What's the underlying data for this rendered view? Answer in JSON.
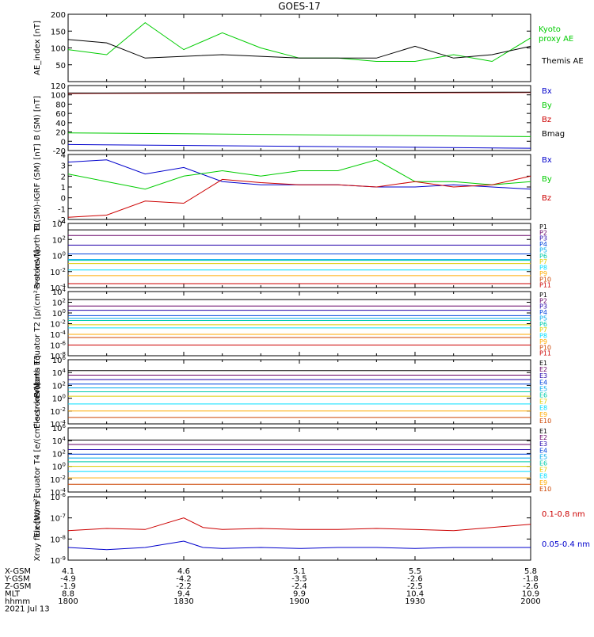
{
  "title": "GOES-17",
  "x_ticks": [
    "1800",
    "1830",
    "1900",
    "1930",
    "2000"
  ],
  "footer": {
    "row_labels": [
      "X-GSM",
      "Y-GSM",
      "Z-GSM",
      "MLT",
      "hhmm"
    ],
    "date": "2021 Jul 13",
    "columns": [
      [
        "4.1",
        "-4.9",
        "-1.9",
        "8.8",
        "1800"
      ],
      [
        "4.6",
        "-4.2",
        "-2.2",
        "9.4",
        "1830"
      ],
      [
        "5.1",
        "-3.5",
        "-2.4",
        "9.9",
        "1900"
      ],
      [
        "5.5",
        "-2.6",
        "-2.5",
        "10.4",
        "1930"
      ],
      [
        "5.8",
        "-1.8",
        "-2.6",
        "10.9",
        "2000"
      ]
    ]
  },
  "colors": {
    "black": "#000000",
    "green": "#00cc00",
    "red": "#cc0000",
    "blue": "#0000cc",
    "P1": "#000000",
    "P2": "#660066",
    "P3": "#2200aa",
    "P4": "#0044dd",
    "P5": "#00aaee",
    "P6": "#00ccaa",
    "P7": "#ddcc00",
    "P8": "#00ddff",
    "P9": "#ffaa00",
    "P10": "#cc4400",
    "P11": "#cc0000"
  },
  "chart_data": [
    {
      "type": "line",
      "ylabel": "AE_index [nT]",
      "ylim": [
        0,
        200
      ],
      "yticks": [
        "200",
        "150",
        "100",
        "50"
      ],
      "x": [
        1800,
        1810,
        1820,
        1830,
        1840,
        1850,
        1900,
        1910,
        1920,
        1930,
        1940,
        1950,
        2000
      ],
      "series": [
        {
          "name": "Kyoto proxy AE",
          "color_key": "green",
          "values": [
            95,
            80,
            175,
            95,
            145,
            100,
            70,
            70,
            60,
            60,
            80,
            60,
            130
          ]
        },
        {
          "name": "Themis AE",
          "color_key": "black",
          "values": [
            125,
            115,
            70,
            75,
            80,
            75,
            70,
            70,
            70,
            105,
            70,
            80,
            105
          ]
        }
      ]
    },
    {
      "type": "line",
      "ylabel": "B (SM) [nT]",
      "ylim": [
        -20,
        120
      ],
      "yticks": [
        "120",
        "100",
        "80",
        "60",
        "40",
        "20",
        "0",
        "-20"
      ],
      "x": [
        1800,
        2000
      ],
      "series": [
        {
          "name": "Bx",
          "color_key": "blue",
          "values": [
            -7,
            -15
          ]
        },
        {
          "name": "By",
          "color_key": "green",
          "values": [
            18,
            10
          ]
        },
        {
          "name": "Bz",
          "color_key": "red",
          "values": [
            103,
            105
          ]
        },
        {
          "name": "Bmag",
          "color_key": "black",
          "values": [
            104,
            106
          ]
        }
      ]
    },
    {
      "type": "line",
      "ylabel": "B (SM)-IGRF (SM) [nT]",
      "ylim": [
        -2,
        4
      ],
      "yticks": [
        "4",
        "3",
        "2",
        "1",
        "0",
        "-1",
        "-2"
      ],
      "x": [
        1800,
        1810,
        1820,
        1830,
        1840,
        1850,
        1900,
        1910,
        1920,
        1930,
        1940,
        1950,
        2000
      ],
      "series": [
        {
          "name": "Bx",
          "color_key": "blue",
          "values": [
            3.3,
            3.5,
            2.2,
            2.8,
            1.5,
            1.2,
            1.2,
            1.2,
            1.0,
            1.0,
            1.2,
            1.0,
            0.8
          ]
        },
        {
          "name": "By",
          "color_key": "green",
          "values": [
            2.2,
            1.5,
            0.8,
            2.0,
            2.5,
            2.0,
            2.5,
            2.5,
            3.5,
            1.5,
            1.5,
            1.2,
            1.5
          ]
        },
        {
          "name": "Bz",
          "color_key": "red",
          "values": [
            -1.8,
            -1.6,
            -0.3,
            -0.5,
            1.7,
            1.4,
            1.2,
            1.2,
            1.0,
            1.5,
            1.0,
            1.2,
            2.0
          ]
        }
      ]
    },
    {
      "type": "line",
      "ylabel": "Protons North T1",
      "ylim": [
        -4,
        4
      ],
      "log": true,
      "yticks": [
        "10^4",
        "10^2",
        "10^0",
        "10^-2",
        "10^-4"
      ],
      "legend": [
        "P1",
        "P2",
        "P3",
        "P4",
        "P5",
        "P6",
        "P7",
        "P8",
        "P9",
        "P10",
        "P11"
      ],
      "levels": [
        3.2,
        2.5,
        1.3,
        0.2,
        -0.5,
        -0.6,
        -1.0,
        -1.8,
        -2.5,
        -3.5,
        -3.5
      ]
    },
    {
      "type": "line",
      "ylabel": "Protons Equator T2 [p/(cm²-s-sr-keV)]",
      "ylim": [
        -8,
        4
      ],
      "log": true,
      "yticks": [
        "10^4",
        "10^2",
        "10^0",
        "10^-2",
        "10^-4",
        "10^-6",
        "10^-8"
      ],
      "legend": [
        "P1",
        "P2",
        "P3",
        "P4",
        "P5",
        "P6",
        "P7",
        "P8",
        "P9",
        "P10",
        "P11"
      ],
      "levels": [
        2.5,
        1.3,
        0.5,
        -0.5,
        -1.0,
        -1.4,
        -2.2,
        -2.8,
        -4.0,
        -4.6,
        -6.0
      ]
    },
    {
      "type": "line",
      "ylabel": "Electrons North T3",
      "ylim": [
        -4,
        6
      ],
      "log": true,
      "yticks": [
        "10^6",
        "10^4",
        "10^2",
        "10^0",
        "10^-2",
        "10^-4"
      ],
      "legend": [
        "E1",
        "E2",
        "E3",
        "E4",
        "E5",
        "E6",
        "E7",
        "E8",
        "E9",
        "E10"
      ],
      "levels": [
        4.3,
        3.6,
        2.9,
        2.2,
        1.6,
        1.0,
        0.3,
        -0.9,
        -2.0,
        -3.0
      ]
    },
    {
      "type": "line",
      "ylabel": "Electrons Equator T4 [e/(cm²-s-sr-keV)]",
      "ylim": [
        -4,
        6
      ],
      "log": true,
      "yticks": [
        "10^6",
        "10^4",
        "10^2",
        "10^0",
        "10^-2",
        "10^-4"
      ],
      "legend": [
        "E1",
        "E2",
        "E3",
        "E4",
        "E5",
        "E6",
        "E7",
        "E8",
        "E9",
        "E10"
      ],
      "levels": [
        4.1,
        3.4,
        2.6,
        1.9,
        1.3,
        0.7,
        0.0,
        -0.8,
        -1.8,
        -2.8
      ]
    },
    {
      "type": "line",
      "ylabel": "Xray flux [W/m²]",
      "ylim": [
        -9,
        -6
      ],
      "log": true,
      "yticks": [
        "10^-6",
        "10^-7",
        "10^-8",
        "10^-9"
      ],
      "x": [
        1800,
        1810,
        1820,
        1830,
        1835,
        1840,
        1850,
        1900,
        1910,
        1920,
        1930,
        1940,
        1950,
        2000
      ],
      "series": [
        {
          "name": "0.1-0.8 nm",
          "color_key": "red",
          "values": [
            -7.6,
            -7.5,
            -7.55,
            -7.0,
            -7.45,
            -7.55,
            -7.5,
            -7.55,
            -7.55,
            -7.5,
            -7.55,
            -7.6,
            -7.45,
            -7.3
          ]
        },
        {
          "name": "0.05-0.4 nm",
          "color_key": "blue",
          "values": [
            -8.4,
            -8.5,
            -8.4,
            -8.1,
            -8.4,
            -8.45,
            -8.4,
            -8.45,
            -8.4,
            -8.4,
            -8.45,
            -8.4,
            -8.4,
            -8.4
          ]
        }
      ]
    }
  ]
}
